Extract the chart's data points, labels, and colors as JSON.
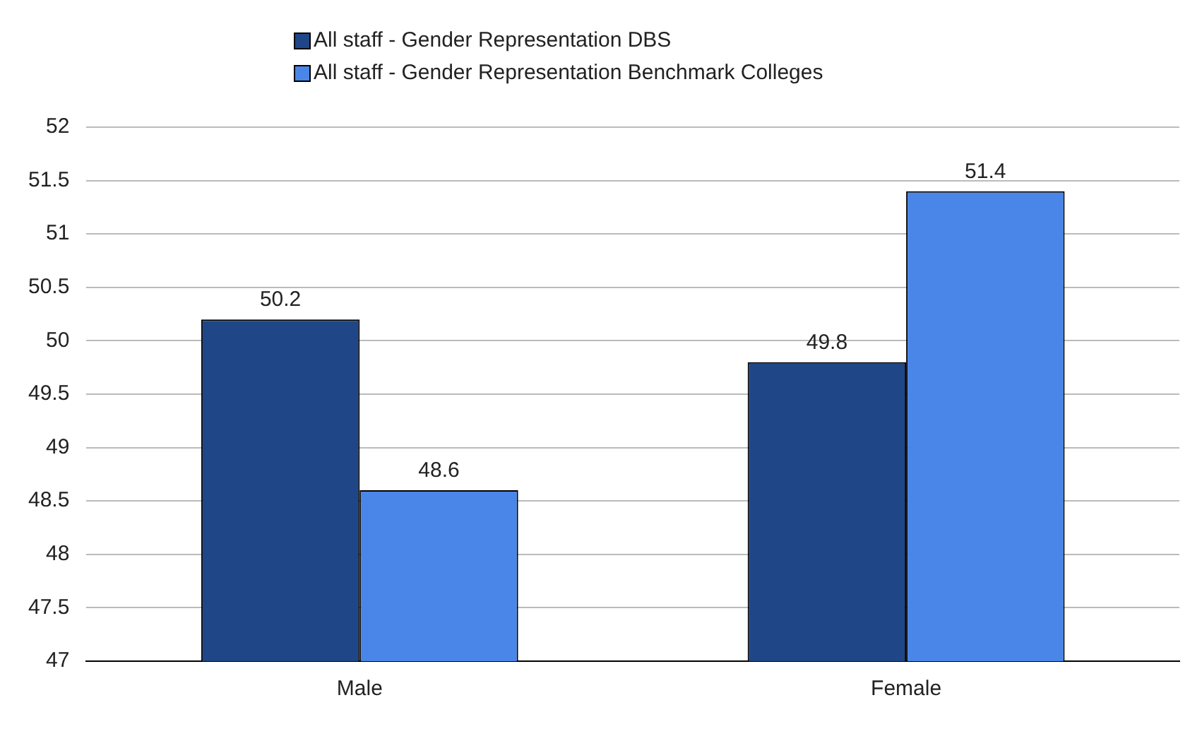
{
  "chart_data": {
    "type": "bar",
    "categories": [
      "Male",
      "Female"
    ],
    "series": [
      {
        "name": "All staff - Gender Representation DBS",
        "color": "#1f4788",
        "values": [
          50.2,
          49.8
        ]
      },
      {
        "name": "All staff - Gender Representation Benchmark Colleges",
        "color": "#4a86e8",
        "values": [
          48.6,
          51.4
        ]
      }
    ],
    "ylim": [
      47,
      52
    ],
    "yticks": [
      47,
      47.5,
      48,
      48.5,
      49,
      49.5,
      50,
      50.5,
      51,
      51.5,
      52
    ],
    "grid": "y",
    "legend": "top left",
    "data_labels": true
  }
}
